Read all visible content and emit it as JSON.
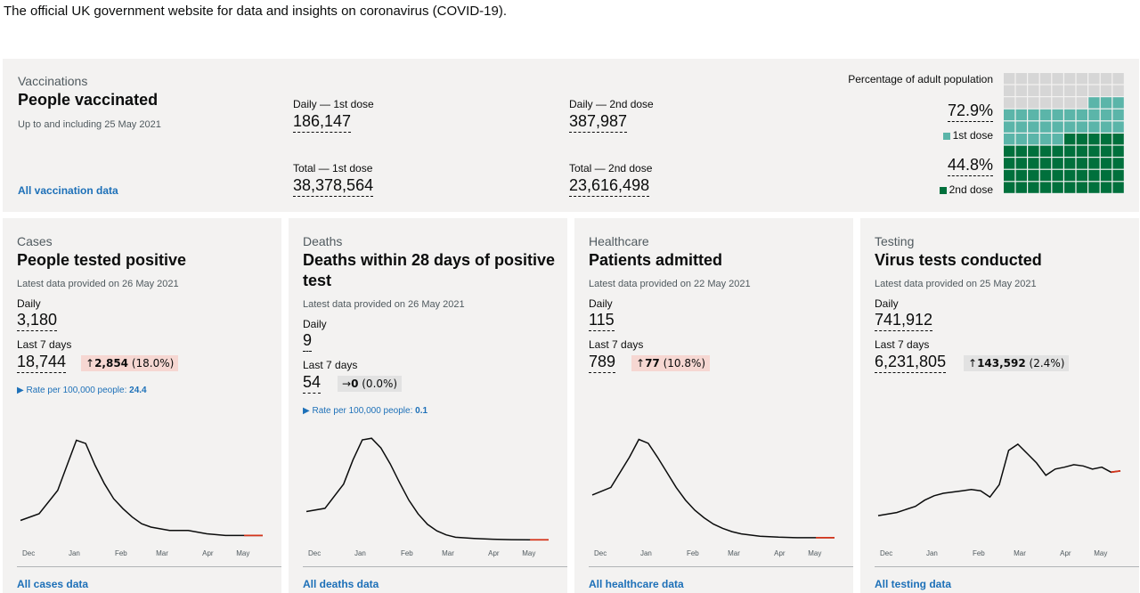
{
  "intro": "The official UK government website for data and insights on coronavirus (COVID-19).",
  "vaccinations": {
    "caption": "Vaccinations",
    "title": "People vaccinated",
    "updated": "Up to and including 25 May 2021",
    "daily_first_label": "Daily — 1st dose",
    "daily_first_value": "186,147",
    "daily_second_label": "Daily — 2nd dose",
    "daily_second_value": "387,987",
    "total_first_label": "Total — 1st dose",
    "total_first_value": "38,378,564",
    "total_second_label": "Total — 2nd dose",
    "total_second_value": "23,616,498",
    "link": "All vaccination data",
    "pct_title": "Percentage of adult population",
    "pct_first": "72.9%",
    "pct_first_label": "1st dose",
    "pct_second": "44.8%",
    "pct_second_label": "2nd dose",
    "first_dose_fraction": 0.729,
    "second_dose_fraction": 0.448,
    "colors": {
      "first": "#5bb5a9",
      "second": "#00703c",
      "empty": "#d6d6d6"
    }
  },
  "cards": [
    {
      "caption": "Cases",
      "title": "People tested positive",
      "updated": "Latest data provided on 26 May 2021",
      "daily_label": "Daily",
      "daily_value": "3,180",
      "week_label": "Last 7 days",
      "week_value": "18,744",
      "change_arrow": "↑",
      "change_value": "2,854",
      "change_pct": "(18.0%)",
      "rate_label": "Rate per 100,000 people:",
      "rate_value": "24.4",
      "link": "All cases data"
    },
    {
      "caption": "Deaths",
      "title": "Deaths within 28 days of positive test",
      "updated": "Latest data provided on 26 May 2021",
      "daily_label": "Daily",
      "daily_value": "9",
      "week_label": "Last 7 days",
      "week_value": "54",
      "change_arrow": "→",
      "change_value": "0",
      "change_pct": "(0.0%)",
      "rate_label": "Rate per 100,000 people:",
      "rate_value": "0.1",
      "link": "All deaths data"
    },
    {
      "caption": "Healthcare",
      "title": "Patients admitted",
      "updated": "Latest data provided on 22 May 2021",
      "daily_label": "Daily",
      "daily_value": "115",
      "week_label": "Last 7 days",
      "week_value": "789",
      "change_arrow": "↑",
      "change_value": "77",
      "change_pct": "(10.8%)",
      "link": "All healthcare data"
    },
    {
      "caption": "Testing",
      "title": "Virus tests conducted",
      "updated": "Latest data provided on 25 May 2021",
      "daily_label": "Daily",
      "daily_value": "741,912",
      "week_label": "Last 7 days",
      "week_value": "6,231,805",
      "change_arrow": "↑",
      "change_value": "143,592",
      "change_pct": "(2.4%)",
      "link": "All testing data"
    }
  ],
  "chart_data": [
    {
      "type": "line",
      "x_ticks": [
        "Dec",
        "Jan",
        "Feb",
        "Mar",
        "Apr",
        "May"
      ],
      "x": [
        0,
        2,
        4,
        5,
        6,
        7,
        8,
        9,
        10,
        11,
        12,
        13,
        14,
        15,
        16,
        18,
        20,
        22,
        24,
        26
      ],
      "values": [
        12,
        16,
        30,
        45,
        60,
        58,
        45,
        34,
        25,
        19,
        14,
        10,
        8,
        7,
        6,
        6,
        4,
        3,
        3,
        3
      ],
      "ylim": [
        0,
        65
      ]
    },
    {
      "type": "line",
      "x_ticks": [
        "Dec",
        "Jan",
        "Feb",
        "Mar",
        "Apr",
        "May"
      ],
      "x": [
        0,
        2,
        4,
        5,
        6,
        7,
        8,
        9,
        10,
        11,
        12,
        13,
        14,
        15,
        16,
        18,
        20,
        22,
        24,
        26
      ],
      "values": [
        360,
        400,
        700,
        1000,
        1250,
        1270,
        1150,
        950,
        720,
        500,
        330,
        200,
        120,
        70,
        40,
        25,
        15,
        10,
        8,
        8
      ],
      "ylim": [
        0,
        1350
      ]
    },
    {
      "type": "line",
      "x_ticks": [
        "Dec",
        "Jan",
        "Feb",
        "Mar",
        "Apr",
        "May"
      ],
      "x": [
        0,
        2,
        4,
        5,
        6,
        7,
        8,
        9,
        10,
        11,
        12,
        13,
        14,
        15,
        16,
        18,
        20,
        22,
        24,
        26
      ],
      "values": [
        1800,
        2100,
        3300,
        4000,
        3850,
        3300,
        2700,
        2100,
        1600,
        1200,
        900,
        650,
        480,
        350,
        260,
        170,
        130,
        110,
        110,
        110
      ],
      "ylim": [
        0,
        4300
      ]
    },
    {
      "type": "line",
      "x_ticks": [
        "Dec",
        "Jan",
        "Feb",
        "Mar",
        "Apr",
        "May"
      ],
      "x": [
        0,
        2,
        4,
        5,
        6,
        7,
        8,
        9,
        10,
        11,
        12,
        13,
        14,
        15,
        16,
        17,
        18,
        19,
        20,
        21,
        22,
        23,
        24,
        25,
        26
      ],
      "values": [
        0.4,
        0.45,
        0.55,
        0.65,
        0.72,
        0.76,
        0.78,
        0.8,
        0.82,
        0.8,
        0.7,
        0.9,
        1.45,
        1.55,
        1.4,
        1.25,
        1.05,
        1.15,
        1.18,
        1.22,
        1.2,
        1.15,
        1.18,
        1.1,
        1.12
      ],
      "ylim": [
        0,
        1.75
      ]
    }
  ]
}
